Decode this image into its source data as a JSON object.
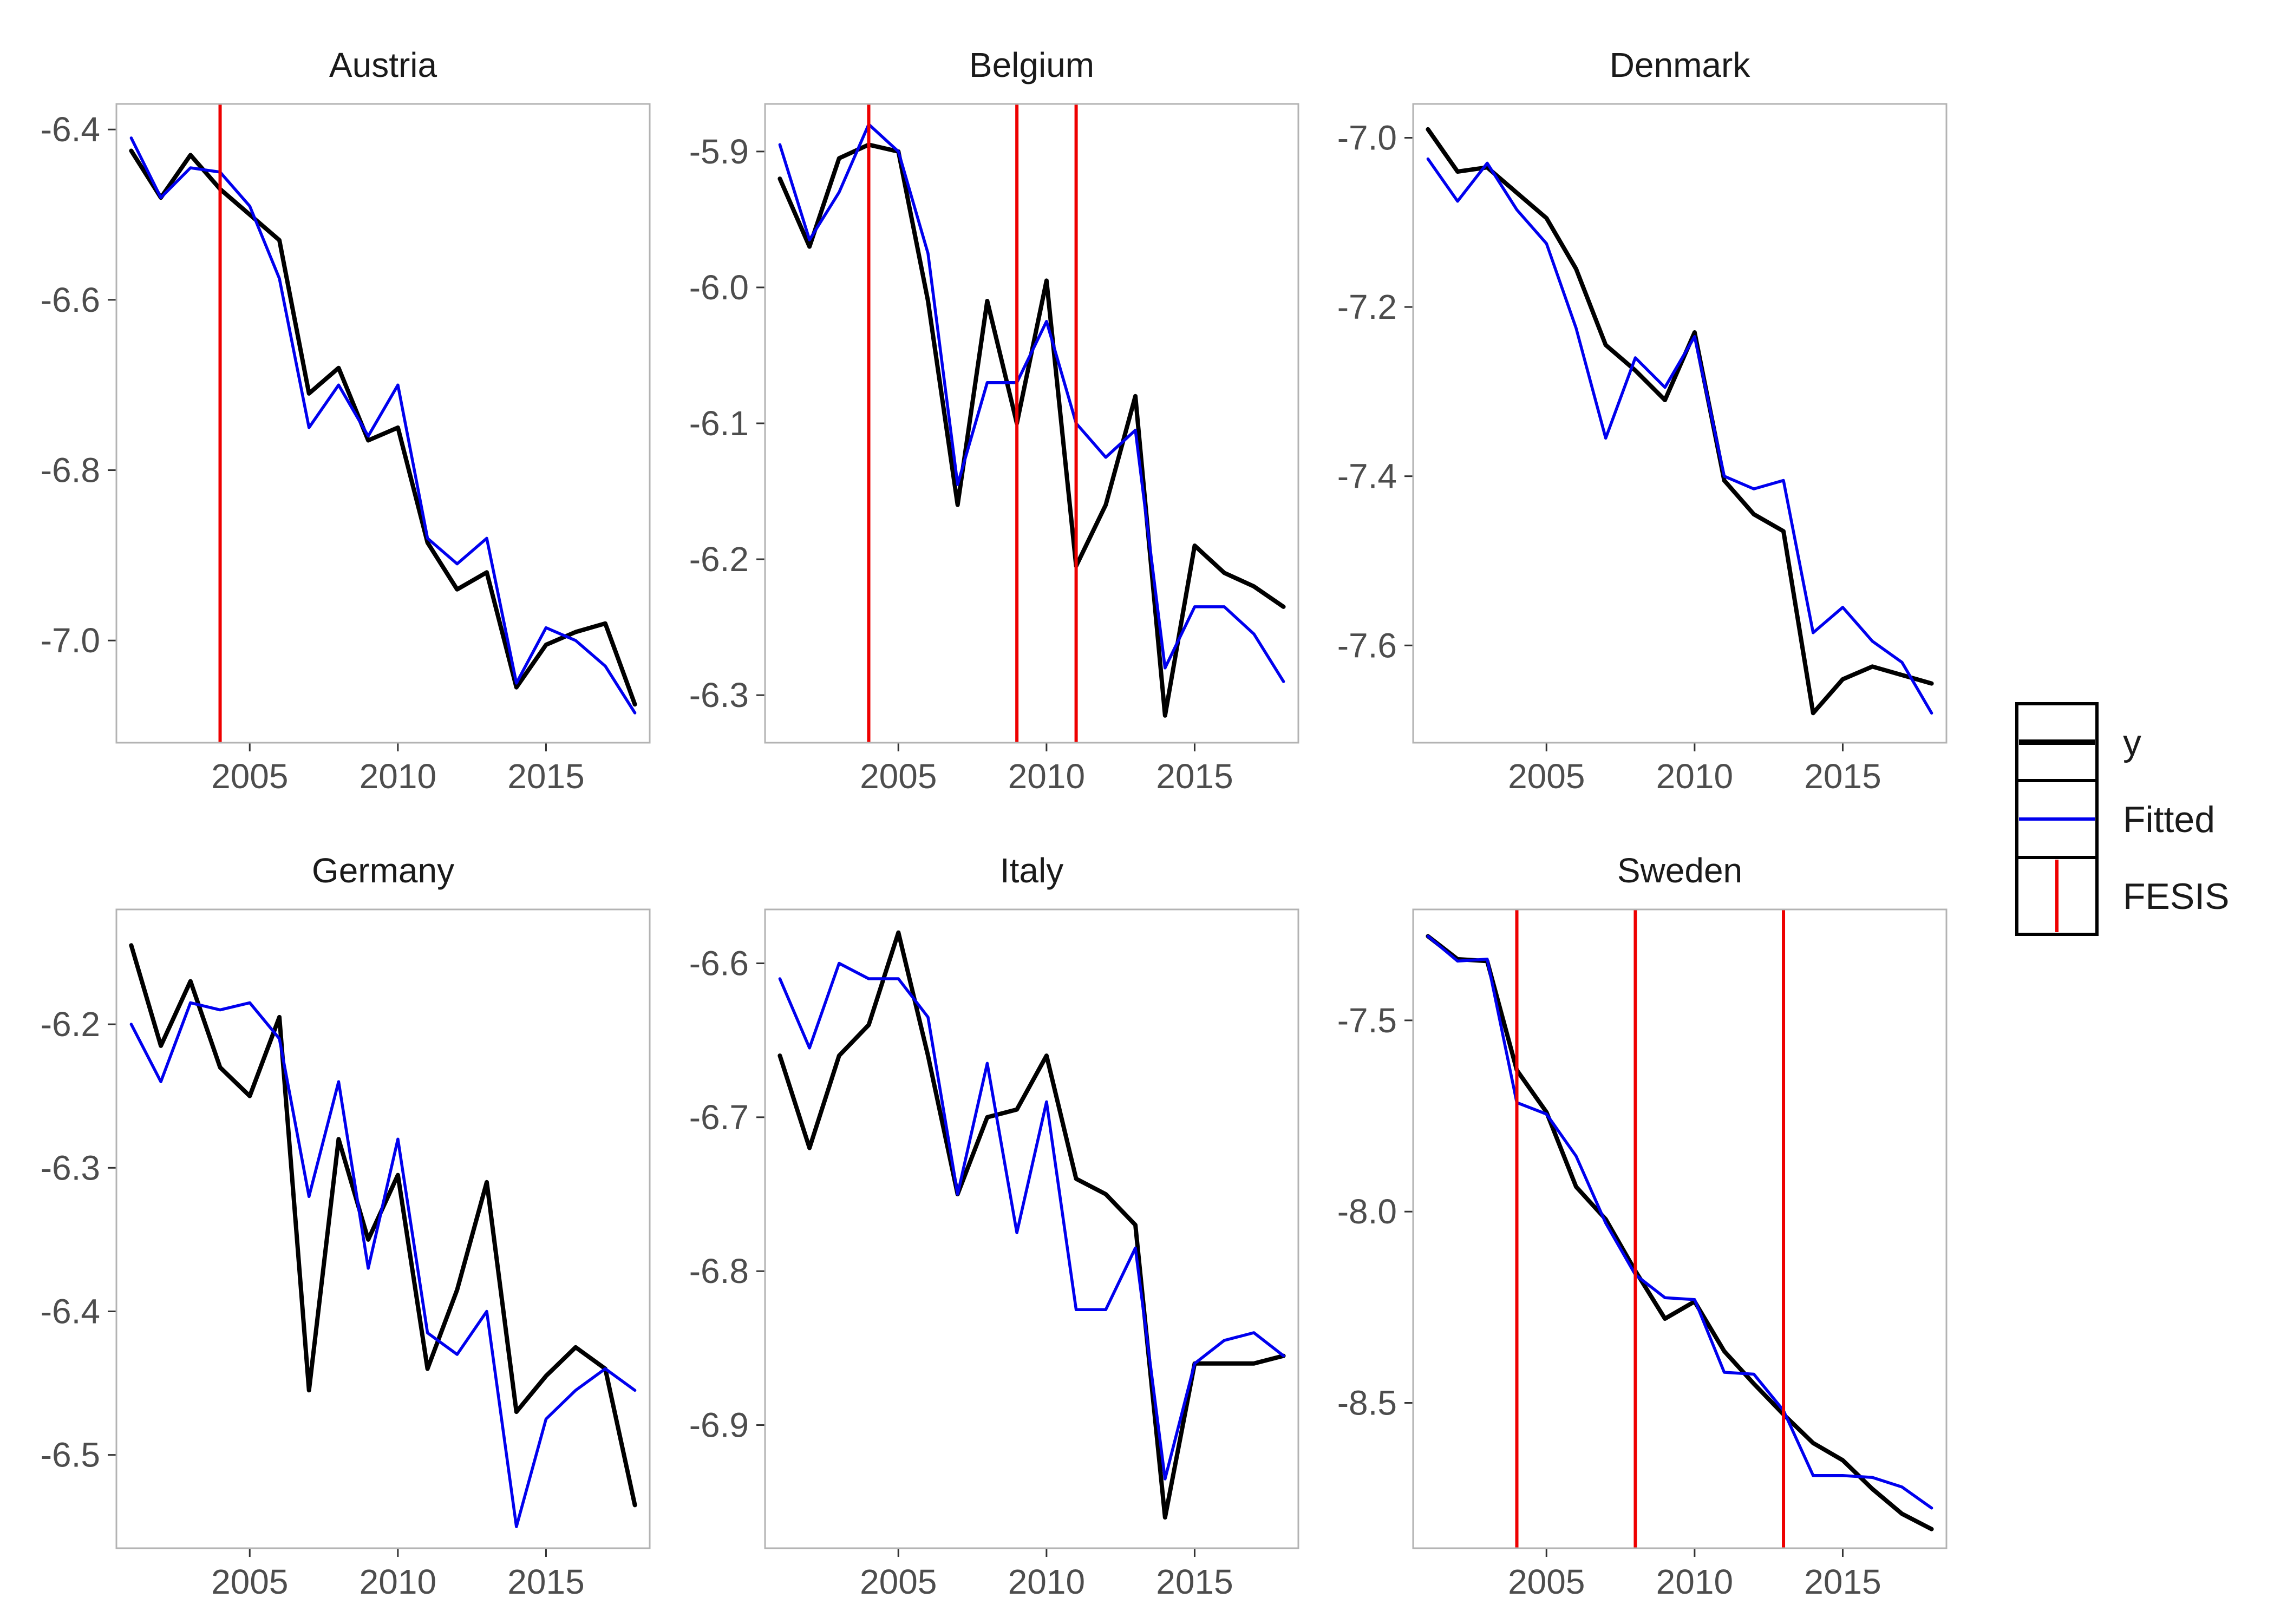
{
  "chart_data": {
    "type": "line",
    "x": [
      2001,
      2002,
      2003,
      2004,
      2005,
      2006,
      2007,
      2008,
      2009,
      2010,
      2011,
      2012,
      2013,
      2014,
      2015,
      2016,
      2017,
      2018
    ],
    "xlim": [
      2000.5,
      2018.5
    ],
    "xticks": [
      "2005",
      "2010",
      "2015"
    ],
    "legend": {
      "position": "right",
      "entries": [
        {
          "label": "y",
          "color": "#000000"
        },
        {
          "label": "Fitted",
          "color": "#0000ee"
        },
        {
          "label": "FESIS",
          "color": "#ee0000"
        }
      ]
    },
    "panels": [
      {
        "title": "Austria",
        "ylim": [
          -7.12,
          -6.37
        ],
        "yticks": [
          "-6.4",
          "-6.6",
          "-6.8",
          "-7.0"
        ],
        "breaks": [
          2004
        ],
        "series": [
          {
            "name": "y",
            "values": [
              -6.425,
              -6.48,
              -6.43,
              -6.47,
              -6.5,
              -6.53,
              -6.71,
              -6.68,
              -6.765,
              -6.75,
              -6.885,
              -6.94,
              -6.92,
              -7.055,
              -7.005,
              -6.99,
              -6.98,
              -7.075
            ]
          },
          {
            "name": "Fitted",
            "values": [
              -6.41,
              -6.48,
              -6.445,
              -6.45,
              -6.49,
              -6.575,
              -6.75,
              -6.7,
              -6.76,
              -6.7,
              -6.88,
              -6.91,
              -6.88,
              -7.05,
              -6.985,
              -7.0,
              -7.03,
              -7.085
            ]
          }
        ]
      },
      {
        "title": "Belgium",
        "ylim": [
          -6.335,
          -5.865
        ],
        "yticks": [
          "-5.9",
          "-6.0",
          "-6.1",
          "-6.2",
          "-6.3"
        ],
        "breaks": [
          2004,
          2009,
          2011
        ],
        "series": [
          {
            "name": "y",
            "values": [
              -5.92,
              -5.97,
              -5.905,
              -5.895,
              -5.9,
              -6.01,
              -6.16,
              -6.01,
              -6.1,
              -5.995,
              -6.205,
              -6.16,
              -6.08,
              -6.315,
              -6.19,
              -6.21,
              -6.22,
              -6.235
            ]
          },
          {
            "name": "Fitted",
            "values": [
              -5.895,
              -5.965,
              -5.93,
              -5.88,
              -5.9,
              -5.975,
              -6.145,
              -6.07,
              -6.07,
              -6.025,
              -6.1,
              -6.125,
              -6.105,
              -6.28,
              -6.235,
              -6.235,
              -6.255,
              -6.29
            ]
          }
        ]
      },
      {
        "title": "Denmark",
        "ylim": [
          -7.715,
          -6.96
        ],
        "yticks": [
          "-7.0",
          "-7.2",
          "-7.4",
          "-7.6"
        ],
        "breaks": [],
        "series": [
          {
            "name": "y",
            "values": [
              -6.99,
              -7.04,
              -7.035,
              -7.065,
              -7.095,
              -7.155,
              -7.245,
              -7.275,
              -7.31,
              -7.23,
              -7.405,
              -7.445,
              -7.465,
              -7.68,
              -7.64,
              -7.625,
              -7.635,
              -7.645
            ]
          },
          {
            "name": "Fitted",
            "values": [
              -7.025,
              -7.075,
              -7.03,
              -7.085,
              -7.125,
              -7.225,
              -7.355,
              -7.26,
              -7.295,
              -7.235,
              -7.4,
              -7.415,
              -7.405,
              -7.585,
              -7.555,
              -7.595,
              -7.62,
              -7.68
            ]
          }
        ]
      },
      {
        "title": "Germany",
        "ylim": [
          -6.565,
          -6.12
        ],
        "yticks": [
          "-6.2",
          "-6.3",
          "-6.4",
          "-6.5"
        ],
        "breaks": [],
        "series": [
          {
            "name": "y",
            "values": [
              -6.145,
              -6.215,
              -6.17,
              -6.23,
              -6.25,
              -6.195,
              -6.455,
              -6.28,
              -6.35,
              -6.305,
              -6.44,
              -6.385,
              -6.31,
              -6.47,
              -6.445,
              -6.425,
              -6.44,
              -6.535
            ]
          },
          {
            "name": "Fitted",
            "values": [
              -6.2,
              -6.24,
              -6.185,
              -6.19,
              -6.185,
              -6.21,
              -6.32,
              -6.24,
              -6.37,
              -6.28,
              -6.415,
              -6.43,
              -6.4,
              -6.55,
              -6.475,
              -6.455,
              -6.44,
              -6.455
            ]
          }
        ]
      },
      {
        "title": "Italy",
        "ylim": [
          -6.98,
          -6.565
        ],
        "yticks": [
          "-6.6",
          "-6.7",
          "-6.8",
          "-6.9"
        ],
        "breaks": [],
        "series": [
          {
            "name": "y",
            "values": [
              -6.66,
              -6.72,
              -6.66,
              -6.64,
              -6.58,
              -6.66,
              -6.75,
              -6.7,
              -6.695,
              -6.66,
              -6.74,
              -6.75,
              -6.77,
              -6.96,
              -6.86,
              -6.86,
              -6.86,
              -6.855
            ]
          },
          {
            "name": "Fitted",
            "values": [
              -6.61,
              -6.655,
              -6.6,
              -6.61,
              -6.61,
              -6.635,
              -6.75,
              -6.665,
              -6.775,
              -6.69,
              -6.825,
              -6.825,
              -6.785,
              -6.935,
              -6.86,
              -6.845,
              -6.84,
              -6.855
            ]
          }
        ]
      },
      {
        "title": "Sweden",
        "ylim": [
          -8.88,
          -7.21
        ],
        "yticks": [
          "-7.5",
          "-8.0",
          "-8.5"
        ],
        "breaks": [
          2004,
          2008,
          2013
        ],
        "series": [
          {
            "name": "y",
            "values": [
              -7.28,
              -7.34,
              -7.345,
              -7.63,
              -7.74,
              -7.935,
              -8.02,
              -8.155,
              -8.28,
              -8.235,
              -8.365,
              -8.45,
              -8.53,
              -8.605,
              -8.65,
              -8.725,
              -8.79,
              -8.83
            ]
          },
          {
            "name": "Fitted",
            "values": [
              -7.28,
              -7.345,
              -7.34,
              -7.715,
              -7.745,
              -7.855,
              -8.03,
              -8.165,
              -8.225,
              -8.23,
              -8.42,
              -8.425,
              -8.52,
              -8.69,
              -8.69,
              -8.695,
              -8.72,
              -8.775
            ]
          }
        ]
      }
    ]
  }
}
